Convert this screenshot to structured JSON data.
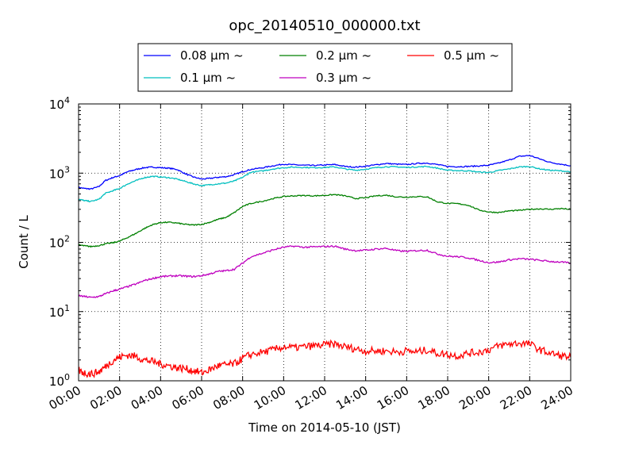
{
  "chart_data": {
    "type": "line",
    "title": "opc_20140510_000000.txt",
    "xlabel": "Time on 2014-05-10 (JST)",
    "ylabel": "Count / L",
    "x_unit": "hour",
    "xlim": [
      0,
      24
    ],
    "ylim": [
      1,
      10000
    ],
    "yscale": "log",
    "grid": true,
    "legend_position": "top-center",
    "x_ticks": [
      "00:00",
      "02:00",
      "04:00",
      "06:00",
      "08:00",
      "10:00",
      "12:00",
      "14:00",
      "16:00",
      "18:00",
      "20:00",
      "22:00",
      "24:00"
    ],
    "y_ticks": [
      {
        "base": "10",
        "exp": "0",
        "value": 1
      },
      {
        "base": "10",
        "exp": "1",
        "value": 10
      },
      {
        "base": "10",
        "exp": "2",
        "value": 100
      },
      {
        "base": "10",
        "exp": "3",
        "value": 1000
      },
      {
        "base": "10",
        "exp": "4",
        "value": 10000
      }
    ],
    "series": [
      {
        "name": "0.08 µm ~",
        "color": "#0000ff",
        "points": [
          [
            0,
            620
          ],
          [
            0.3,
            600
          ],
          [
            0.6,
            590
          ],
          [
            1,
            640
          ],
          [
            1.3,
            780
          ],
          [
            1.7,
            870
          ],
          [
            2,
            920
          ],
          [
            2.4,
            1050
          ],
          [
            2.8,
            1130
          ],
          [
            3.2,
            1200
          ],
          [
            3.6,
            1220
          ],
          [
            4,
            1200
          ],
          [
            4.4,
            1180
          ],
          [
            4.8,
            1130
          ],
          [
            5.2,
            980
          ],
          [
            5.6,
            880
          ],
          [
            6,
            820
          ],
          [
            6.4,
            840
          ],
          [
            6.8,
            870
          ],
          [
            7.2,
            890
          ],
          [
            7.6,
            950
          ],
          [
            8,
            1050
          ],
          [
            8.4,
            1130
          ],
          [
            9,
            1200
          ],
          [
            9.5,
            1280
          ],
          [
            10,
            1350
          ],
          [
            10.5,
            1320
          ],
          [
            11,
            1300
          ],
          [
            11.5,
            1290
          ],
          [
            12,
            1310
          ],
          [
            12.5,
            1330
          ],
          [
            13,
            1250
          ],
          [
            13.5,
            1220
          ],
          [
            14,
            1260
          ],
          [
            14.5,
            1320
          ],
          [
            15,
            1380
          ],
          [
            15.5,
            1350
          ],
          [
            16,
            1330
          ],
          [
            16.5,
            1380
          ],
          [
            17,
            1400
          ],
          [
            17.5,
            1330
          ],
          [
            18,
            1250
          ],
          [
            18.5,
            1240
          ],
          [
            19,
            1250
          ],
          [
            19.5,
            1270
          ],
          [
            20,
            1300
          ],
          [
            20.5,
            1400
          ],
          [
            21,
            1550
          ],
          [
            21.5,
            1750
          ],
          [
            22,
            1800
          ],
          [
            22.5,
            1600
          ],
          [
            23,
            1430
          ],
          [
            23.5,
            1350
          ],
          [
            24,
            1280
          ]
        ]
      },
      {
        "name": "0.1 µm ~",
        "color": "#00bfbf",
        "points": [
          [
            0,
            420
          ],
          [
            0.3,
            400
          ],
          [
            0.6,
            390
          ],
          [
            1,
            420
          ],
          [
            1.3,
            510
          ],
          [
            1.7,
            560
          ],
          [
            2,
            600
          ],
          [
            2.4,
            700
          ],
          [
            2.8,
            780
          ],
          [
            3.2,
            860
          ],
          [
            3.6,
            900
          ],
          [
            4,
            880
          ],
          [
            4.4,
            860
          ],
          [
            4.8,
            820
          ],
          [
            5.2,
            760
          ],
          [
            5.6,
            700
          ],
          [
            6,
            660
          ],
          [
            6.4,
            680
          ],
          [
            6.8,
            700
          ],
          [
            7.2,
            720
          ],
          [
            7.6,
            770
          ],
          [
            8,
            870
          ],
          [
            8.4,
            1030
          ],
          [
            9,
            1080
          ],
          [
            9.5,
            1150
          ],
          [
            10,
            1200
          ],
          [
            10.5,
            1220
          ],
          [
            11,
            1210
          ],
          [
            11.5,
            1200
          ],
          [
            12,
            1210
          ],
          [
            12.5,
            1230
          ],
          [
            13,
            1150
          ],
          [
            13.5,
            1100
          ],
          [
            14,
            1140
          ],
          [
            14.5,
            1200
          ],
          [
            15,
            1240
          ],
          [
            15.5,
            1230
          ],
          [
            16,
            1210
          ],
          [
            16.5,
            1230
          ],
          [
            17,
            1250
          ],
          [
            17.5,
            1180
          ],
          [
            18,
            1100
          ],
          [
            18.5,
            1090
          ],
          [
            19,
            1080
          ],
          [
            19.5,
            1040
          ],
          [
            20,
            1020
          ],
          [
            20.5,
            1090
          ],
          [
            21,
            1150
          ],
          [
            21.5,
            1230
          ],
          [
            22,
            1250
          ],
          [
            22.5,
            1150
          ],
          [
            23,
            1100
          ],
          [
            23.5,
            1080
          ],
          [
            24,
            1050
          ]
        ]
      },
      {
        "name": "0.2 µm ~",
        "color": "#008000",
        "points": [
          [
            0,
            92
          ],
          [
            0.3,
            89
          ],
          [
            0.6,
            87
          ],
          [
            1,
            90
          ],
          [
            1.3,
            95
          ],
          [
            1.7,
            99
          ],
          [
            2,
            104
          ],
          [
            2.4,
            118
          ],
          [
            2.8,
            135
          ],
          [
            3.2,
            158
          ],
          [
            3.6,
            180
          ],
          [
            4,
            193
          ],
          [
            4.4,
            195
          ],
          [
            4.8,
            190
          ],
          [
            5.2,
            182
          ],
          [
            5.6,
            178
          ],
          [
            6,
            182
          ],
          [
            6.4,
            195
          ],
          [
            6.8,
            215
          ],
          [
            7.2,
            230
          ],
          [
            7.6,
            270
          ],
          [
            8,
            330
          ],
          [
            8.4,
            365
          ],
          [
            9,
            395
          ],
          [
            9.5,
            430
          ],
          [
            10,
            460
          ],
          [
            10.5,
            470
          ],
          [
            11,
            475
          ],
          [
            11.5,
            470
          ],
          [
            12,
            478
          ],
          [
            12.5,
            490
          ],
          [
            13,
            470
          ],
          [
            13.5,
            430
          ],
          [
            14,
            440
          ],
          [
            14.5,
            470
          ],
          [
            15,
            480
          ],
          [
            15.5,
            455
          ],
          [
            16,
            450
          ],
          [
            16.5,
            458
          ],
          [
            17,
            455
          ],
          [
            17.5,
            385
          ],
          [
            18,
            365
          ],
          [
            18.5,
            362
          ],
          [
            19,
            345
          ],
          [
            19.5,
            295
          ],
          [
            20,
            275
          ],
          [
            20.5,
            270
          ],
          [
            21,
            285
          ],
          [
            21.5,
            290
          ],
          [
            22,
            300
          ],
          [
            22.5,
            305
          ],
          [
            23,
            300
          ],
          [
            23.5,
            308
          ],
          [
            24,
            300
          ]
        ]
      },
      {
        "name": "0.3 µm ~",
        "color": "#bf00bf",
        "points": [
          [
            0,
            17
          ],
          [
            0.3,
            16.5
          ],
          [
            0.6,
            16
          ],
          [
            1,
            16.5
          ],
          [
            1.3,
            18
          ],
          [
            1.7,
            20
          ],
          [
            2,
            21
          ],
          [
            2.4,
            23
          ],
          [
            2.8,
            25
          ],
          [
            3.2,
            28
          ],
          [
            3.6,
            30
          ],
          [
            4,
            32
          ],
          [
            4.4,
            32.5
          ],
          [
            4.8,
            33
          ],
          [
            5.2,
            32.5
          ],
          [
            5.6,
            32
          ],
          [
            6,
            33
          ],
          [
            6.4,
            35
          ],
          [
            6.8,
            38
          ],
          [
            7.2,
            39
          ],
          [
            7.6,
            41
          ],
          [
            8,
            50
          ],
          [
            8.4,
            62
          ],
          [
            9,
            70
          ],
          [
            9.5,
            78
          ],
          [
            10,
            85
          ],
          [
            10.5,
            88
          ],
          [
            11,
            85
          ],
          [
            11.5,
            86
          ],
          [
            12,
            87
          ],
          [
            12.5,
            88
          ],
          [
            13,
            80
          ],
          [
            13.5,
            76
          ],
          [
            14,
            77
          ],
          [
            14.5,
            80
          ],
          [
            15,
            82
          ],
          [
            15.5,
            76
          ],
          [
            16,
            74
          ],
          [
            16.5,
            76
          ],
          [
            17,
            77
          ],
          [
            17.5,
            68
          ],
          [
            18,
            63
          ],
          [
            18.5,
            62
          ],
          [
            19,
            60
          ],
          [
            19.5,
            55
          ],
          [
            20,
            51
          ],
          [
            20.5,
            52
          ],
          [
            21,
            56
          ],
          [
            21.5,
            58
          ],
          [
            22,
            57
          ],
          [
            22.5,
            55
          ],
          [
            23,
            53
          ],
          [
            23.5,
            52
          ],
          [
            24,
            50
          ]
        ]
      },
      {
        "name": "0.5 µm ~",
        "color": "#ff0000",
        "points": [
          [
            0,
            1.4
          ],
          [
            0.3,
            1.3
          ],
          [
            0.6,
            1.25
          ],
          [
            1,
            1.35
          ],
          [
            1.3,
            1.6
          ],
          [
            1.7,
            2.0
          ],
          [
            2,
            2.2
          ],
          [
            2.4,
            2.35
          ],
          [
            2.8,
            2.25
          ],
          [
            3.2,
            2.0
          ],
          [
            3.6,
            1.9
          ],
          [
            4,
            1.75
          ],
          [
            4.4,
            1.65
          ],
          [
            4.8,
            1.55
          ],
          [
            5.2,
            1.5
          ],
          [
            5.6,
            1.4
          ],
          [
            6,
            1.3
          ],
          [
            6.4,
            1.45
          ],
          [
            6.8,
            1.65
          ],
          [
            7.2,
            1.7
          ],
          [
            7.6,
            1.75
          ],
          [
            8,
            2.1
          ],
          [
            8.4,
            2.4
          ],
          [
            9,
            2.6
          ],
          [
            9.5,
            2.8
          ],
          [
            10,
            3.1
          ],
          [
            10.5,
            3.0
          ],
          [
            11,
            3.1
          ],
          [
            11.5,
            3.2
          ],
          [
            12,
            3.3
          ],
          [
            12.5,
            3.4
          ],
          [
            13,
            3.1
          ],
          [
            13.5,
            2.9
          ],
          [
            14,
            2.7
          ],
          [
            14.5,
            2.7
          ],
          [
            15,
            2.7
          ],
          [
            15.5,
            2.6
          ],
          [
            16,
            2.7
          ],
          [
            16.5,
            2.6
          ],
          [
            17,
            2.8
          ],
          [
            17.5,
            2.5
          ],
          [
            18,
            2.4
          ],
          [
            18.5,
            2.3
          ],
          [
            19,
            2.5
          ],
          [
            19.5,
            2.6
          ],
          [
            20,
            2.8
          ],
          [
            20.5,
            3.2
          ],
          [
            21,
            3.4
          ],
          [
            21.5,
            3.5
          ],
          [
            22,
            3.4
          ],
          [
            22.5,
            2.8
          ],
          [
            23,
            2.5
          ],
          [
            23.5,
            2.3
          ],
          [
            24,
            2.2
          ]
        ]
      }
    ]
  }
}
